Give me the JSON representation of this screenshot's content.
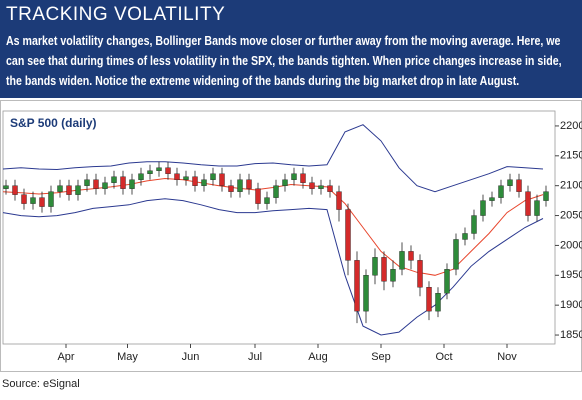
{
  "header": {
    "title": "TRACKING VOLATILITY",
    "description": "As market volatility changes, Bollinger Bands move closer or further away from the moving average. Here, we can see that during times of less volatility in the SPX, the bands tighten. When price changes increase in side, the bands widen. Notice the extreme widening of the bands during the big market drop in late August."
  },
  "chart_data": {
    "type": "candlestick",
    "title": "S&P 500 (daily)",
    "x": [
      1,
      4,
      7,
      10,
      13,
      16,
      19,
      22,
      25,
      28,
      31,
      34,
      37,
      40,
      43,
      46,
      49,
      52,
      55,
      58,
      61,
      64,
      67,
      70,
      73,
      76,
      79,
      82,
      85,
      88,
      91,
      94,
      97,
      100,
      103,
      106,
      109,
      112,
      115,
      118,
      121,
      124,
      127,
      130,
      133,
      136,
      139,
      142,
      145,
      148,
      151,
      154,
      157,
      160,
      163,
      166,
      169,
      172,
      175,
      178,
      181
    ],
    "open": [
      2095,
      2100,
      2085,
      2070,
      2080,
      2065,
      2090,
      2100,
      2085,
      2100,
      2110,
      2095,
      2105,
      2115,
      2095,
      2110,
      2120,
      2125,
      2130,
      2120,
      2110,
      2115,
      2100,
      2110,
      2120,
      2100,
      2090,
      2110,
      2095,
      2070,
      2080,
      2100,
      2110,
      2120,
      2105,
      2095,
      2100,
      2090,
      2060,
      1975,
      1890,
      1950,
      1980,
      1940,
      1960,
      1990,
      1975,
      1930,
      1890,
      1920,
      1960,
      2010,
      2020,
      2050,
      2075,
      2080,
      2100,
      2110,
      2090,
      2050,
      2075
    ],
    "high": [
      2110,
      2110,
      2095,
      2090,
      2090,
      2100,
      2110,
      2110,
      2110,
      2120,
      2120,
      2115,
      2125,
      2125,
      2120,
      2130,
      2135,
      2140,
      2140,
      2130,
      2125,
      2125,
      2120,
      2130,
      2130,
      2110,
      2120,
      2120,
      2105,
      2090,
      2110,
      2120,
      2130,
      2130,
      2115,
      2110,
      2110,
      2100,
      2070,
      1990,
      1960,
      1995,
      1990,
      1975,
      2005,
      2000,
      1985,
      1940,
      1930,
      1970,
      2020,
      2030,
      2060,
      2085,
      2090,
      2110,
      2120,
      2120,
      2100,
      2085,
      2100
    ],
    "low": [
      2085,
      2075,
      2060,
      2060,
      2055,
      2055,
      2080,
      2075,
      2075,
      2090,
      2085,
      2085,
      2095,
      2085,
      2085,
      2100,
      2110,
      2115,
      2110,
      2100,
      2100,
      2090,
      2090,
      2100,
      2090,
      2080,
      2080,
      2085,
      2060,
      2060,
      2070,
      2090,
      2100,
      2095,
      2085,
      2085,
      2080,
      2040,
      1950,
      1870,
      1870,
      1935,
      1925,
      1930,
      1950,
      1960,
      1915,
      1875,
      1880,
      1910,
      1950,
      2000,
      2010,
      2040,
      2065,
      2070,
      2090,
      2080,
      2040,
      2040,
      2065
    ],
    "close": [
      2100,
      2085,
      2070,
      2080,
      2065,
      2090,
      2100,
      2085,
      2100,
      2110,
      2095,
      2105,
      2115,
      2095,
      2110,
      2120,
      2125,
      2130,
      2120,
      2110,
      2115,
      2100,
      2110,
      2120,
      2100,
      2090,
      2110,
      2095,
      2070,
      2080,
      2100,
      2110,
      2120,
      2105,
      2095,
      2100,
      2090,
      2060,
      1975,
      1890,
      1950,
      1980,
      1940,
      1960,
      1990,
      1975,
      1930,
      1890,
      1920,
      1960,
      2010,
      2020,
      2050,
      2075,
      2080,
      2100,
      2110,
      2090,
      2050,
      2075,
      2090
    ],
    "up_color": "#2e8b3a",
    "down_color": "#d42a2a",
    "band_x": [
      0,
      6,
      12,
      18,
      24,
      30,
      36,
      42,
      48,
      54,
      60,
      66,
      72,
      78,
      84,
      90,
      96,
      102,
      108,
      114,
      120,
      126,
      132,
      138,
      144,
      150,
      156,
      162,
      168,
      174,
      180
    ],
    "upper_band": [
      2128,
      2130,
      2128,
      2127,
      2130,
      2132,
      2133,
      2138,
      2140,
      2140,
      2138,
      2135,
      2133,
      2133,
      2137,
      2138,
      2135,
      2133,
      2135,
      2190,
      2202,
      2175,
      2130,
      2100,
      2090,
      2100,
      2110,
      2120,
      2132,
      2130,
      2128
    ],
    "middle_band": [
      2090,
      2088,
      2086,
      2088,
      2092,
      2095,
      2098,
      2102,
      2108,
      2112,
      2110,
      2105,
      2100,
      2096,
      2093,
      2097,
      2102,
      2100,
      2098,
      2070,
      2030,
      1990,
      1965,
      1955,
      1950,
      1960,
      1990,
      2020,
      2055,
      2075,
      2085
    ],
    "lower_band": [
      2055,
      2050,
      2048,
      2050,
      2055,
      2062,
      2065,
      2068,
      2075,
      2078,
      2075,
      2068,
      2060,
      2055,
      2055,
      2058,
      2060,
      2062,
      2060,
      1950,
      1865,
      1850,
      1855,
      1880,
      1900,
      1930,
      1965,
      1990,
      2010,
      2030,
      2045
    ],
    "band_color": "#2b3990",
    "middle_color": "#e8452c",
    "xlim": [
      0,
      184
    ],
    "xticks": [
      {
        "value": 21,
        "label": "Apr"
      },
      {
        "value": 41.5,
        "label": "May"
      },
      {
        "value": 62.5,
        "label": "Jun"
      },
      {
        "value": 84,
        "label": "Jul"
      },
      {
        "value": 105,
        "label": "Aug"
      },
      {
        "value": 126,
        "label": "Sep"
      },
      {
        "value": 147,
        "label": "Oct"
      },
      {
        "value": 168,
        "label": "Nov"
      }
    ],
    "ylim": [
      1835,
      2225
    ],
    "yticks": [
      1850,
      1900,
      1950,
      2000,
      2050,
      2100,
      2150,
      2200
    ]
  },
  "footer": {
    "source": "Source: eSignal"
  }
}
